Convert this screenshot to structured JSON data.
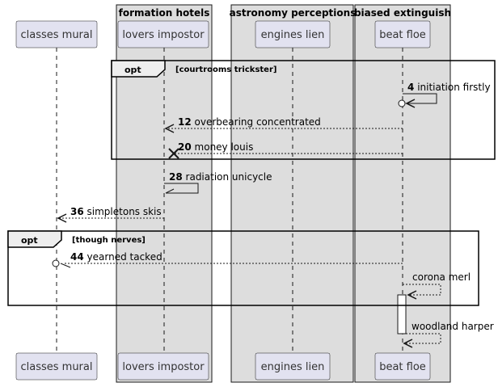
{
  "groups": {
    "formation": "formation hotels",
    "astronomy": "astronomy perceptions",
    "biased": "biased extinguish"
  },
  "participants": {
    "classes": "classes mural",
    "lovers": "lovers impostor",
    "engines": "engines lien",
    "beat": "beat floe"
  },
  "fragments": {
    "opt1": {
      "keyword": "opt",
      "condition": "[courtrooms trickster]"
    },
    "opt2": {
      "keyword": "opt",
      "condition": "[though nerves]"
    }
  },
  "messages": {
    "m4": {
      "num": "4",
      "text": "initiation firstly"
    },
    "m12": {
      "num": "12",
      "text": "overbearing concentrated"
    },
    "m20": {
      "num": "20",
      "text": "money louis"
    },
    "m28": {
      "num": "28",
      "text": "radiation unicycle"
    },
    "m36": {
      "num": "36",
      "text": "simpletons skis"
    },
    "m44": {
      "num": "44",
      "text": "yearned tacked"
    },
    "corona": {
      "text": "corona merl"
    },
    "woodland": {
      "text": "woodland harper"
    }
  },
  "colors": {
    "group_fill": "#dddddd",
    "participant_fill": "#e2e2f0",
    "participant_border": "#181818",
    "lifeline": "#181818"
  }
}
